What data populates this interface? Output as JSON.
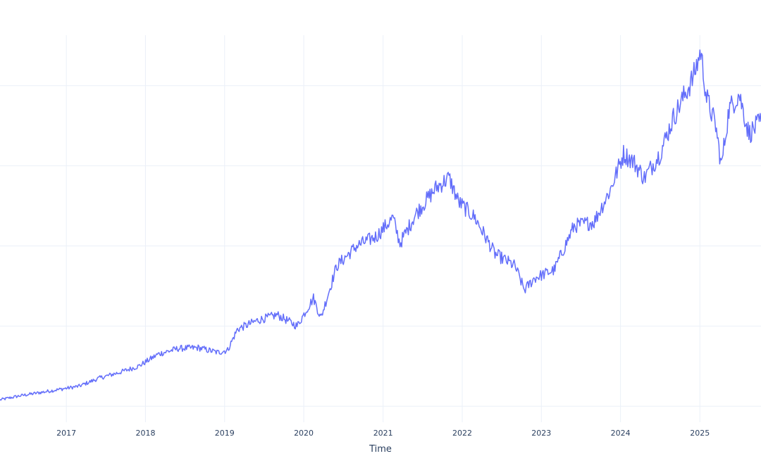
{
  "colors": {
    "line": "#636efa",
    "grid": "#ebf0f8",
    "text": "#2a3f5f",
    "background": "#ffffff"
  },
  "chart_data": {
    "type": "line",
    "title": "",
    "xlabel": "Time",
    "ylabel": "",
    "grid": true,
    "legend": "none",
    "xlim": [
      "2016-03-01",
      "2025-10-10"
    ],
    "ylim": [
      -0.2,
      4.7
    ],
    "y_grid_values": [
      0,
      1,
      2,
      3,
      4
    ],
    "x_ticks": [
      {
        "date": "2017-01-01",
        "label": "2017"
      },
      {
        "date": "2018-01-01",
        "label": "2018"
      },
      {
        "date": "2019-01-01",
        "label": "2019"
      },
      {
        "date": "2020-01-01",
        "label": "2020"
      },
      {
        "date": "2021-01-01",
        "label": "2021"
      },
      {
        "date": "2022-01-01",
        "label": "2022"
      },
      {
        "date": "2023-01-01",
        "label": "2023"
      },
      {
        "date": "2024-01-01",
        "label": "2024"
      },
      {
        "date": "2025-01-01",
        "label": "2025"
      }
    ],
    "series": [
      {
        "color": "#636efa",
        "x": [
          "2016-03-01",
          "2016-06-01",
          "2016-09-01",
          "2016-12-01",
          "2017-03-01",
          "2017-06-01",
          "2017-09-01",
          "2017-12-01",
          "2018-03-01",
          "2018-06-01",
          "2018-09-01",
          "2018-12-01",
          "2019-01-15",
          "2019-03-01",
          "2019-06-01",
          "2019-09-01",
          "2019-12-01",
          "2020-02-15",
          "2020-03-20",
          "2020-06-01",
          "2020-09-01",
          "2020-12-01",
          "2021-02-15",
          "2021-03-20",
          "2021-06-01",
          "2021-09-01",
          "2021-11-01",
          "2021-12-15",
          "2022-03-01",
          "2022-06-01",
          "2022-09-01",
          "2022-10-15",
          "2022-12-01",
          "2023-03-01",
          "2023-06-01",
          "2023-09-01",
          "2023-11-15",
          "2024-01-15",
          "2024-03-01",
          "2024-04-20",
          "2024-07-01",
          "2024-09-01",
          "2024-12-01",
          "2025-01-05",
          "2025-02-01",
          "2025-03-15",
          "2025-04-10",
          "2025-05-15",
          "2025-07-01",
          "2025-08-15",
          "2025-10-10"
        ],
        "y": [
          0.08,
          0.13,
          0.17,
          0.21,
          0.25,
          0.35,
          0.42,
          0.5,
          0.65,
          0.72,
          0.73,
          0.67,
          0.7,
          0.96,
          1.07,
          1.14,
          1.0,
          1.35,
          1.1,
          1.75,
          2.0,
          2.12,
          2.35,
          2.03,
          2.4,
          2.72,
          2.85,
          2.55,
          2.35,
          1.9,
          1.75,
          1.45,
          1.6,
          1.7,
          2.25,
          2.3,
          2.7,
          3.15,
          3.05,
          2.85,
          3.15,
          3.6,
          4.1,
          4.43,
          3.85,
          3.5,
          3.0,
          3.7,
          3.9,
          3.4,
          3.55
        ]
      }
    ]
  }
}
